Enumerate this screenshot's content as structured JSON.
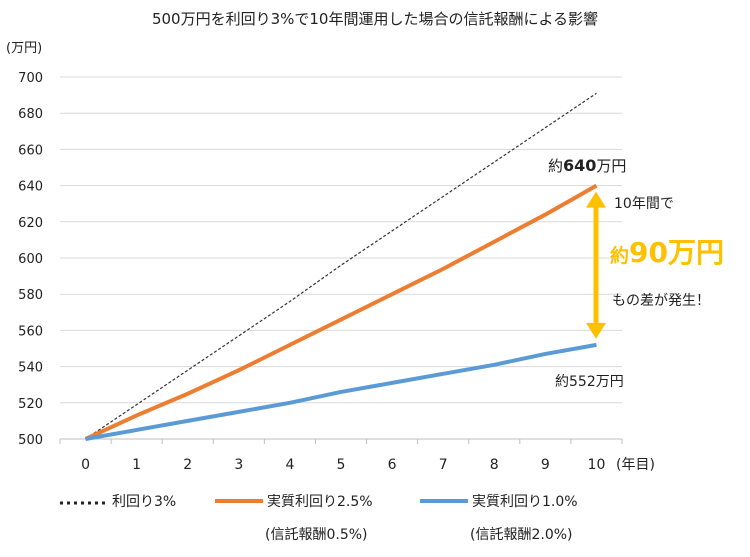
{
  "chart_data": {
    "type": "line",
    "title": "500万円を利回り3%で10年間運用した場合の信託報酬による影響",
    "ylabel": "(万円)",
    "xlabel": "(年目)",
    "x": [
      0,
      1,
      2,
      3,
      4,
      5,
      6,
      7,
      8,
      9,
      10
    ],
    "ylim": [
      500,
      700
    ],
    "yticks": [
      500,
      520,
      540,
      560,
      580,
      600,
      620,
      640,
      660,
      680,
      700
    ],
    "grid": true,
    "legend_position": "bottom",
    "series": [
      {
        "name": "利回り3%",
        "sub": "",
        "color": "#333333",
        "style": "dotted",
        "values": [
          500,
          519,
          538,
          557,
          576,
          596,
          615,
          634,
          653,
          672,
          691
        ]
      },
      {
        "name": "実質利回り2.5%",
        "sub": "(信託報酬0.5%)",
        "color": "#ED7D31",
        "style": "solid",
        "values": [
          500,
          513,
          525,
          538,
          552,
          566,
          580,
          594,
          609,
          624,
          640
        ]
      },
      {
        "name": "実質利回り1.0%",
        "sub": "(信託報酬2.0%)",
        "color": "#5B9BD5",
        "style": "solid",
        "values": [
          500,
          505,
          510,
          515,
          520,
          526,
          531,
          536,
          541,
          547,
          552
        ]
      }
    ],
    "annotations": {
      "top_prefix": "約",
      "top_value": "640",
      "top_suffix": "万円",
      "bottom": "約552万円",
      "diff_line1": "10年間で",
      "diff_prefix": "約",
      "diff_value": "90万円",
      "diff_line2": "もの差が発生！",
      "arrow_color": "#FFC000"
    }
  }
}
